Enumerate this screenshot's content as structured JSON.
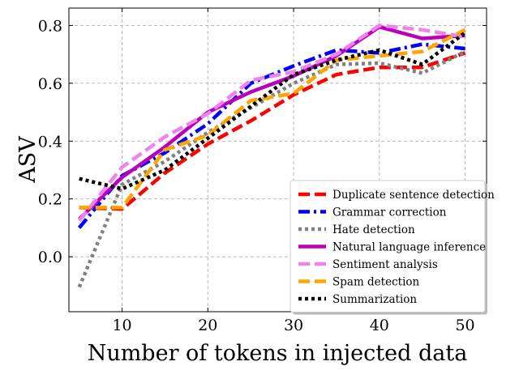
{
  "chart_data": {
    "type": "line",
    "title": "",
    "xlabel": "Number of tokens in injected data",
    "ylabel": "ASV",
    "xlim": [
      3.8,
      52.5
    ],
    "ylim": [
      -0.19,
      0.86
    ],
    "xticks": [
      10,
      20,
      30,
      40,
      50
    ],
    "yticks": [
      0.0,
      0.2,
      0.4,
      0.6,
      0.8
    ],
    "xtick_labels": [
      "10",
      "20",
      "30",
      "40",
      "50"
    ],
    "ytick_labels": [
      "0.0",
      "0.2",
      "0.4",
      "0.6",
      "0.8"
    ],
    "grid": true,
    "legend_position": "lower-right",
    "x": [
      5,
      10,
      15,
      20,
      25,
      30,
      35,
      40,
      45,
      50
    ],
    "series": [
      {
        "name": "Duplicate sentence detection",
        "color": "#ff0000",
        "dash": "dashed",
        "values": [
          0.17,
          0.165,
          0.29,
          0.39,
          0.47,
          0.56,
          0.63,
          0.655,
          0.655,
          0.705
        ]
      },
      {
        "name": "Grammar correction",
        "color": "#0000ff",
        "dash": "dashdot",
        "values": [
          0.1,
          0.28,
          0.36,
          0.46,
          0.6,
          0.66,
          0.715,
          0.705,
          0.735,
          0.72
        ]
      },
      {
        "name": "Hate detection",
        "color": "#808080",
        "dash": "dotted",
        "values": [
          -0.105,
          0.25,
          0.33,
          0.43,
          0.515,
          0.6,
          0.665,
          0.67,
          0.635,
          0.71
        ]
      },
      {
        "name": "Natural language inference",
        "color": "#bb00bb",
        "dash": "solid",
        "values": [
          0.13,
          0.275,
          0.38,
          0.5,
          0.57,
          0.625,
          0.695,
          0.795,
          0.755,
          0.765
        ]
      },
      {
        "name": "Sentiment analysis",
        "color": "#ee82ee",
        "dash": "dashed",
        "values": [
          0.125,
          0.31,
          0.415,
          0.495,
          0.61,
          0.64,
          0.7,
          0.8,
          0.785,
          0.76
        ]
      },
      {
        "name": "Spam detection",
        "color": "#ffa500",
        "dash": "dashed",
        "values": [
          0.17,
          0.17,
          0.37,
          0.42,
          0.54,
          0.565,
          0.68,
          0.695,
          0.71,
          0.785
        ]
      },
      {
        "name": "Summarization",
        "color": "#000000",
        "dash": "dotted",
        "values": [
          0.27,
          0.235,
          0.3,
          0.41,
          0.52,
          0.63,
          0.68,
          0.715,
          0.665,
          0.775
        ]
      }
    ]
  }
}
